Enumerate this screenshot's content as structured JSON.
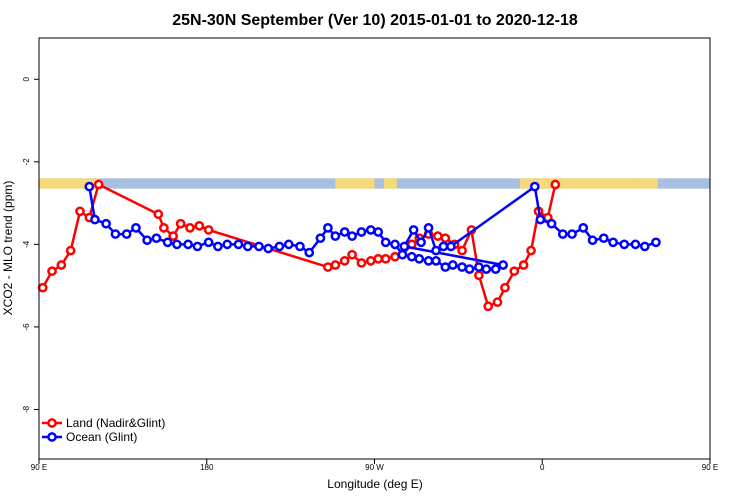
{
  "chart_data": {
    "type": "line",
    "title": "25N-30N September (Ver 10)   2015-01-01 to 2020-12-18",
    "xlabel": "Longitude (deg E)",
    "ylabel": "XCO2 - MLO trend (ppm)",
    "xlim": [
      90,
      450
    ],
    "ylim": [
      -9.2,
      1.0
    ],
    "x_ticks": [
      {
        "value": 90,
        "label": "90 E"
      },
      {
        "value": 180,
        "label": "180"
      },
      {
        "value": 270,
        "label": "90 W"
      },
      {
        "value": 360,
        "label": "0"
      },
      {
        "value": 450,
        "label": "90 E"
      },
      {
        "value": 540,
        "label": "180"
      }
    ],
    "y_ticks": [
      {
        "value": 0,
        "label": "0"
      },
      {
        "value": -2,
        "label": "-2"
      },
      {
        "value": -4,
        "label": "-4"
      },
      {
        "value": -6,
        "label": "-6"
      },
      {
        "value": -8,
        "label": "-8"
      }
    ],
    "grid": false,
    "legend_position": "bottom-left",
    "land_ocean_strip": {
      "y_top": -2.4,
      "y_bottom": -2.65,
      "ocean_color": "#a8bfe0",
      "land_color": "#f6d978",
      "land_segments": [
        [
          90,
          122
        ],
        [
          249,
          270
        ],
        [
          275,
          282
        ],
        [
          348,
          412
        ],
        [
          412,
          422
        ],
        [
          489,
          540
        ]
      ]
    },
    "series": [
      {
        "name": "Land (Nadir&Glint)",
        "color": "#ff0000",
        "points": [
          [
            92,
            -5.05
          ],
          [
            97,
            -4.65
          ],
          [
            102,
            -4.5
          ],
          [
            107,
            -4.15
          ],
          [
            112,
            -3.2
          ],
          [
            117,
            -3.35
          ],
          [
            122,
            -2.55
          ],
          [
            154,
            -3.27
          ],
          [
            157,
            -3.6
          ],
          [
            162,
            -3.8
          ],
          [
            166,
            -3.5
          ],
          [
            171,
            -3.6
          ],
          [
            176,
            -3.55
          ],
          [
            181,
            -3.65
          ],
          [
            245,
            -4.55
          ],
          [
            249,
            -4.5
          ],
          [
            254,
            -4.4
          ],
          [
            258,
            -4.25
          ],
          [
            263,
            -4.45
          ],
          [
            268,
            -4.4
          ],
          [
            272,
            -4.35
          ],
          [
            276,
            -4.35
          ],
          [
            281,
            -4.3
          ],
          [
            285,
            -4.25
          ],
          [
            290,
            -4.0
          ],
          [
            294,
            -3.85
          ],
          [
            299,
            -3.75
          ],
          [
            304,
            -3.8
          ],
          [
            308,
            -3.85
          ],
          [
            313,
            -4.0
          ],
          [
            317,
            -4.15
          ],
          [
            322,
            -3.65
          ],
          [
            326,
            -4.75
          ],
          [
            331,
            -5.5
          ],
          [
            336,
            -5.4
          ],
          [
            340,
            -5.05
          ],
          [
            345,
            -4.65
          ],
          [
            350,
            -4.5
          ],
          [
            354,
            -4.15
          ],
          [
            358,
            -3.2
          ],
          [
            363,
            -3.35
          ],
          [
            367,
            -2.55
          ]
        ]
      },
      {
        "name": "Ocean (Glint)",
        "color": "#0000ff",
        "points": [
          [
            117,
            -2.6
          ],
          [
            120,
            -3.4
          ],
          [
            126,
            -3.5
          ],
          [
            131,
            -3.75
          ],
          [
            137,
            -3.75
          ],
          [
            142,
            -3.6
          ],
          [
            148,
            -3.9
          ],
          [
            153,
            -3.85
          ],
          [
            159,
            -3.95
          ],
          [
            164,
            -4.0
          ],
          [
            170,
            -4.0
          ],
          [
            175,
            -4.05
          ],
          [
            181,
            -3.95
          ],
          [
            186,
            -4.05
          ],
          [
            191,
            -4.0
          ],
          [
            197,
            -4.0
          ],
          [
            202,
            -4.05
          ],
          [
            208,
            -4.05
          ],
          [
            213,
            -4.1
          ],
          [
            219,
            -4.05
          ],
          [
            224,
            -4.0
          ],
          [
            230,
            -4.05
          ],
          [
            235,
            -4.2
          ],
          [
            241,
            -3.85
          ],
          [
            245,
            -3.6
          ],
          [
            249,
            -3.8
          ],
          [
            254,
            -3.7
          ],
          [
            258,
            -3.8
          ],
          [
            263,
            -3.7
          ],
          [
            268,
            -3.65
          ],
          [
            272,
            -3.7
          ],
          [
            276,
            -3.95
          ],
          [
            281,
            -4.0
          ],
          [
            285,
            -4.25
          ],
          [
            290,
            -4.3
          ],
          [
            294,
            -4.35
          ],
          [
            299,
            -4.4
          ],
          [
            303,
            -4.4
          ],
          [
            308,
            -4.55
          ],
          [
            312,
            -4.5
          ],
          [
            317,
            -4.55
          ],
          [
            321,
            -4.6
          ],
          [
            326,
            -4.55
          ],
          [
            330,
            -4.6
          ],
          [
            335,
            -4.6
          ],
          [
            339,
            -4.5
          ],
          [
            286,
            -4.05
          ],
          [
            291,
            -3.65
          ],
          [
            295,
            -3.95
          ],
          [
            299,
            -3.6
          ],
          [
            303,
            -4.15
          ],
          [
            307,
            -4.05
          ],
          [
            311,
            -4.05
          ],
          [
            356,
            -2.6
          ],
          [
            359,
            -3.4
          ],
          [
            365,
            -3.5
          ],
          [
            371,
            -3.75
          ],
          [
            376,
            -3.75
          ],
          [
            382,
            -3.6
          ],
          [
            387,
            -3.9
          ],
          [
            393,
            -3.85
          ],
          [
            398,
            -3.95
          ],
          [
            404,
            -4.0
          ],
          [
            410,
            -4.0
          ],
          [
            415,
            -4.05
          ],
          [
            421,
            -3.95
          ]
        ]
      }
    ]
  }
}
